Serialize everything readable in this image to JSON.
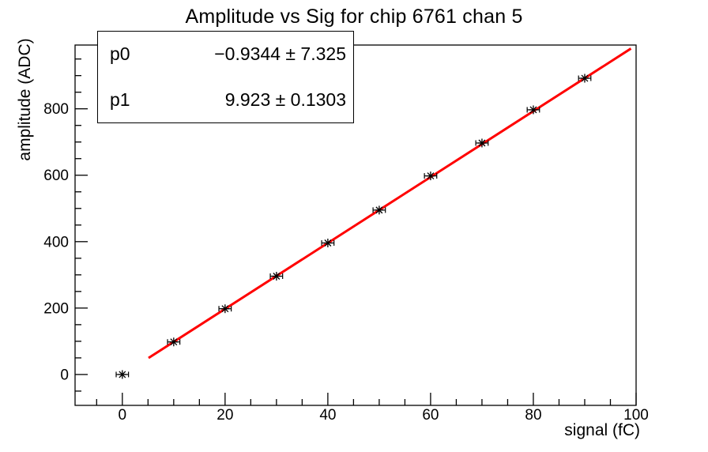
{
  "title": "Amplitude vs Sig for chip 6761 chan 5",
  "stats_box": {
    "rows": [
      {
        "label": "p0",
        "value": "−0.9344 ± 7.325"
      },
      {
        "label": "p1",
        "value": "9.923 ± 0.1303"
      }
    ]
  },
  "chart_data": {
    "type": "scatter",
    "title": "Amplitude vs Sig for chip 6761 chan 5",
    "xlabel": "signal (fC)",
    "ylabel": "amplitude (ADC)",
    "xlim": [
      -9.2,
      100
    ],
    "ylim": [
      -93,
      992
    ],
    "x_major_ticks": [
      0,
      20,
      40,
      60,
      80,
      100
    ],
    "x_minor_step": 5,
    "y_major_ticks": [
      0,
      200,
      400,
      600,
      800
    ],
    "y_minor_step": 50,
    "grid": false,
    "legend": "none",
    "points": {
      "x": [
        0,
        10,
        20,
        30,
        40,
        50,
        60,
        70,
        80,
        90
      ],
      "y": [
        0,
        98,
        198,
        296,
        396,
        495,
        598,
        697,
        797,
        892
      ],
      "xerr": 1.2
    },
    "fit": {
      "model": "pol1",
      "p0": -0.9344,
      "p1": 9.923,
      "x_start": 5.1,
      "x_end": 99.0,
      "color": "#ff0000"
    },
    "marker": "asterisk",
    "colors": {
      "data": "#000000",
      "fit": "#ff0000",
      "frame": "#000000",
      "background": "#ffffff"
    }
  }
}
